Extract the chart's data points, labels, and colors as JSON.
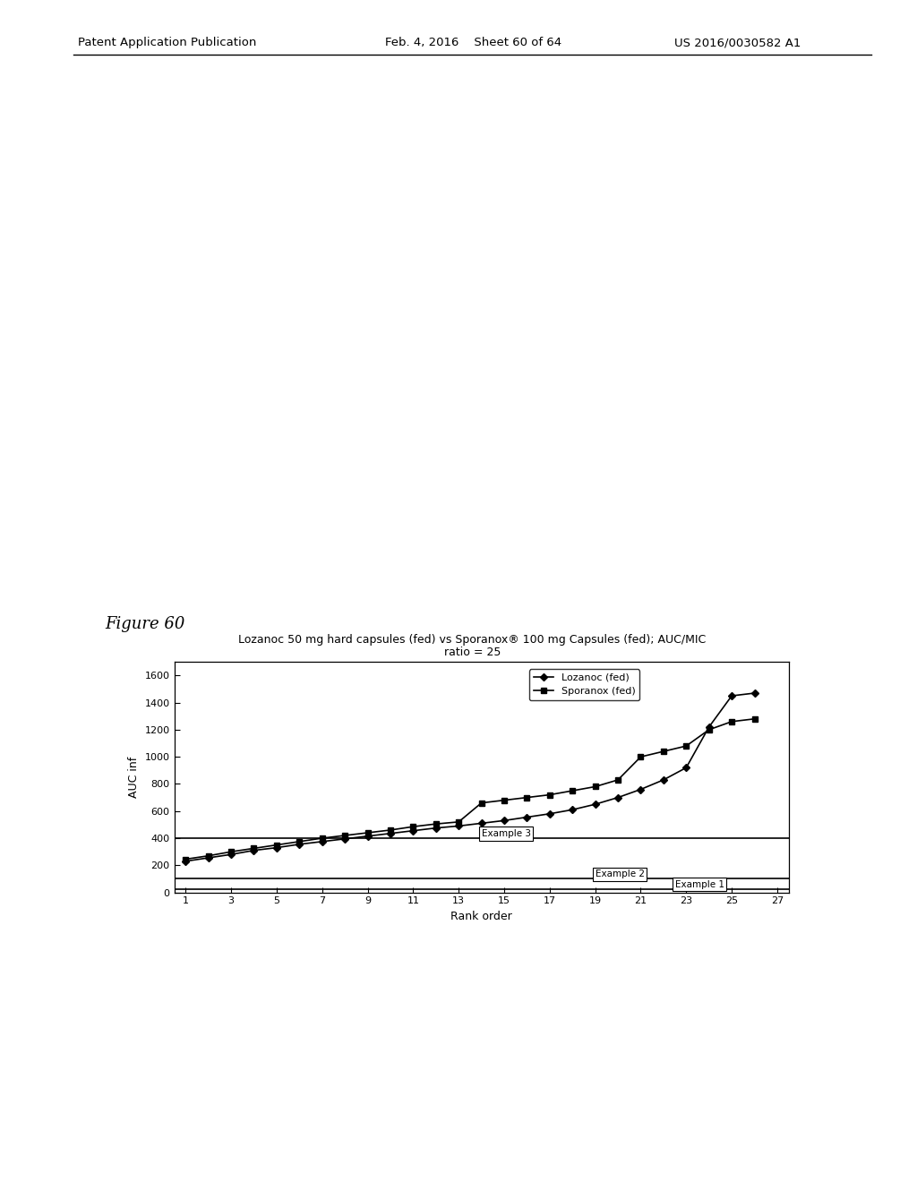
{
  "title_figure": "Figure 60",
  "title_chart_line1": "Lozanoc 50 mg hard capsules (fed) vs Sporanox® 100 mg Capsules (fed); AUC/MIC",
  "title_chart_line2": "ratio = 25",
  "xlabel": "Rank order",
  "ylabel": "AUC inf",
  "xlim_min": 0.5,
  "xlim_max": 27.5,
  "ylim": [
    0,
    1700
  ],
  "yticks": [
    0,
    200,
    400,
    600,
    800,
    1000,
    1200,
    1400,
    1600
  ],
  "xticks": [
    1,
    3,
    5,
    7,
    9,
    11,
    13,
    15,
    17,
    19,
    21,
    23,
    25,
    27
  ],
  "lozanoc_x": [
    1,
    2,
    3,
    4,
    5,
    6,
    7,
    8,
    9,
    10,
    11,
    12,
    13,
    14,
    15,
    16,
    17,
    18,
    19,
    20,
    21,
    22,
    23,
    24,
    25,
    26
  ],
  "lozanoc_y": [
    230,
    255,
    280,
    310,
    330,
    355,
    375,
    395,
    415,
    435,
    455,
    475,
    490,
    510,
    530,
    555,
    580,
    610,
    650,
    700,
    760,
    830,
    920,
    1220,
    1450,
    1470
  ],
  "sporanox_x": [
    1,
    2,
    3,
    4,
    5,
    6,
    7,
    8,
    9,
    10,
    11,
    12,
    13,
    14,
    15,
    16,
    17,
    18,
    19,
    20,
    21,
    22,
    23,
    24,
    25,
    26
  ],
  "sporanox_y": [
    245,
    270,
    300,
    325,
    350,
    375,
    400,
    420,
    440,
    460,
    485,
    505,
    520,
    660,
    680,
    700,
    720,
    750,
    780,
    830,
    1000,
    1040,
    1080,
    1200,
    1260,
    1280
  ],
  "hline_example1": 25,
  "hline_example2": 100,
  "hline_example3": 400,
  "example1_label": "Example 1",
  "example2_label": "Example 2",
  "example3_label": "Example 3",
  "example3_x": 14.0,
  "example2_x": 19.0,
  "example1_x": 22.5,
  "legend_lozanoc": "Lozanoc (fed)",
  "legend_sporanox": "Sporanox (fed)",
  "line_color": "#000000",
  "bg_color": "#ffffff",
  "header_left": "Patent Application Publication",
  "header_mid": "Feb. 4, 2016    Sheet 60 of 64",
  "header_right": "US 2016/0030582 A1"
}
